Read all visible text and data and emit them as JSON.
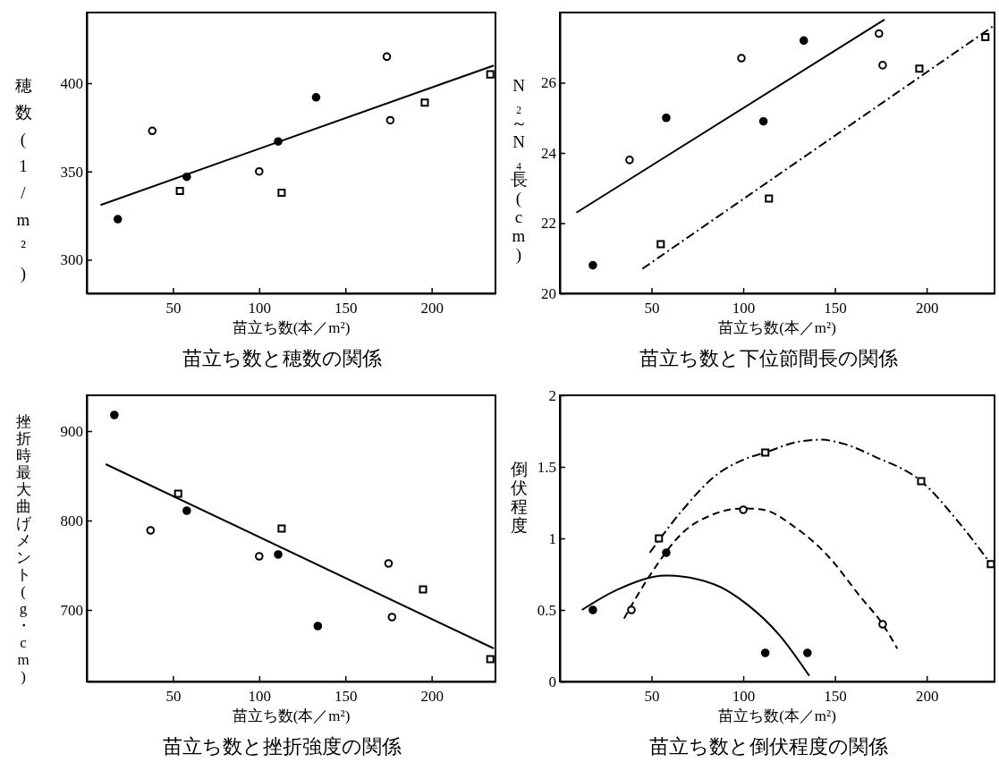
{
  "chart_data": [
    {
      "type": "scatter",
      "title": "苗立ち数と穂数の関係",
      "xlabel": "苗立ち数(本／m²)",
      "ylabel": "穂数(1/m²)",
      "xlim": [
        0,
        237
      ],
      "ylim": [
        281,
        440
      ],
      "xticks": [
        50,
        100,
        150,
        200
      ],
      "yticks": [
        300,
        350,
        400
      ],
      "series": [
        {
          "marker": "circle",
          "color": "#000000",
          "x": [
            18,
            58,
            111,
            133
          ],
          "values": [
            323,
            347,
            367,
            392
          ]
        },
        {
          "marker": "circle",
          "color": "#000000",
          "x": [
            38,
            100,
            174,
            176
          ],
          "values": [
            373,
            350,
            415,
            379
          ]
        },
        {
          "marker": "square",
          "color": "#000000",
          "x": [
            54,
            113,
            196,
            234
          ],
          "values": [
            339,
            338,
            389,
            405
          ]
        },
        {
          "type": "line",
          "line_style": "solid",
          "color": "#000000",
          "x": [
            8,
            236
          ],
          "values": [
            331,
            410
          ]
        }
      ]
    },
    {
      "type": "scatter",
      "title": "苗立ち数と下位節間長の関係",
      "xlabel": "苗立ち数(本／m²)",
      "ylabel": "N₂～N₄長(cm)",
      "xlim": [
        0,
        237
      ],
      "ylim": [
        20,
        28
      ],
      "xticks": [
        50,
        100,
        150,
        200
      ],
      "yticks": [
        20,
        22,
        24,
        26
      ],
      "series": [
        {
          "marker": "circle",
          "color": "#000000",
          "x": [
            18,
            58,
            111,
            133
          ],
          "values": [
            20.8,
            25.0,
            24.9,
            27.2
          ]
        },
        {
          "marker": "circle",
          "color": "#000000",
          "x": [
            38,
            99,
            174,
            176
          ],
          "values": [
            23.8,
            26.7,
            27.4,
            26.5
          ]
        },
        {
          "marker": "square",
          "color": "#000000",
          "x": [
            55,
            114,
            196,
            232
          ],
          "values": [
            21.4,
            22.7,
            26.4,
            27.3
          ]
        },
        {
          "type": "line",
          "line_style": "solid",
          "color": "#000000",
          "x": [
            9,
            177
          ],
          "values": [
            22.3,
            27.8
          ]
        },
        {
          "type": "line",
          "line_style": "dashdot",
          "color": "#000000",
          "x": [
            45,
            236
          ],
          "values": [
            20.7,
            27.6
          ]
        }
      ]
    },
    {
      "type": "scatter",
      "title": "苗立ち数と挫折強度の関係",
      "xlabel": "苗立ち数(本／m²)",
      "ylabel": "挫折時最大曲げメント(g・cm)",
      "xlim": [
        0,
        237
      ],
      "ylim": [
        620,
        940
      ],
      "xticks": [
        50,
        100,
        150,
        200
      ],
      "yticks": [
        700,
        800,
        900
      ],
      "series": [
        {
          "marker": "circle",
          "color": "#000000",
          "x": [
            16,
            58,
            111,
            134
          ],
          "values": [
            918,
            811,
            762,
            682
          ]
        },
        {
          "marker": "circle",
          "color": "#000000",
          "x": [
            37,
            100,
            175,
            177
          ],
          "values": [
            789,
            760,
            752,
            692
          ]
        },
        {
          "marker": "square",
          "color": "#000000",
          "x": [
            53,
            113,
            195,
            234
          ],
          "values": [
            830,
            791,
            723,
            645
          ]
        },
        {
          "type": "line",
          "line_style": "solid",
          "color": "#000000",
          "x": [
            11,
            236
          ],
          "values": [
            863,
            657
          ]
        }
      ]
    },
    {
      "type": "scatter",
      "title": "苗立ち数と倒伏程度の関係",
      "xlabel": "苗立ち数(本／m²)",
      "ylabel": "倒伏程度",
      "xlim": [
        0,
        237
      ],
      "ylim": [
        0,
        2
      ],
      "xticks": [
        50,
        100,
        150,
        200
      ],
      "yticks": [
        0,
        0.5,
        1,
        1.5,
        2
      ],
      "series": [
        {
          "marker": "circle",
          "color": "#000000",
          "x": [
            18,
            58,
            112,
            135
          ],
          "values": [
            0.5,
            0.9,
            0.2,
            0.2
          ]
        },
        {
          "marker": "circle",
          "color": "#000000",
          "x": [
            39,
            100,
            176
          ],
          "values": [
            0.5,
            1.2,
            0.4
          ]
        },
        {
          "marker": "square",
          "color": "#000000",
          "x": [
            54,
            112,
            197,
            235
          ],
          "values": [
            1.0,
            1.6,
            1.4,
            0.82
          ]
        },
        {
          "type": "line",
          "line_style": "solid",
          "color": "#000000",
          "x": [
            12,
            31,
            58,
            84,
            102,
            120,
            136
          ],
          "values": [
            0.5,
            0.64,
            0.74,
            0.68,
            0.54,
            0.32,
            0.04
          ]
        },
        {
          "type": "line",
          "line_style": "dashed",
          "color": "#000000",
          "x": [
            35,
            49,
            67,
            84,
            100,
            111,
            128,
            146,
            164,
            176,
            184
          ],
          "values": [
            0.44,
            0.74,
            1.04,
            1.17,
            1.21,
            1.2,
            1.08,
            0.88,
            0.59,
            0.4,
            0.23
          ]
        },
        {
          "type": "line",
          "line_style": "dashdot",
          "color": "#000000",
          "x": [
            49,
            67,
            84,
            102,
            112,
            128,
            142,
            155,
            172,
            197,
            217,
            235
          ],
          "values": [
            0.9,
            1.2,
            1.43,
            1.56,
            1.6,
            1.67,
            1.69,
            1.66,
            1.57,
            1.4,
            1.12,
            0.82
          ]
        }
      ]
    }
  ]
}
